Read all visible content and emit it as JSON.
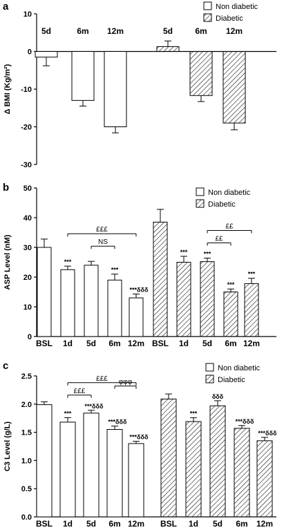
{
  "chart_data": [
    {
      "panel": "a",
      "type": "bar",
      "ylabel": "Δ BMI (Kg/m²)",
      "ylim": [
        -30,
        10
      ],
      "yticks": [
        10,
        0,
        -10,
        -20,
        -30
      ],
      "legend": [
        "Non diabetic",
        "Diabetic"
      ],
      "legend_placement": "top-right",
      "category_labels_position": "top",
      "series": [
        {
          "name": "Non diabetic",
          "pattern": "open",
          "categories": [
            "5d",
            "6m",
            "12m"
          ],
          "values": [
            -1.5,
            -13,
            -20
          ],
          "errors": [
            2.3,
            1.5,
            1.6
          ]
        },
        {
          "name": "Diabetic",
          "pattern": "hatched",
          "categories": [
            "5d",
            "6m",
            "12m"
          ],
          "values": [
            1.3,
            -11.7,
            -19
          ],
          "errors": [
            1.5,
            1.6,
            1.8
          ]
        }
      ]
    },
    {
      "panel": "b",
      "type": "bar",
      "ylabel": "ASP Level (nM)",
      "ylim": [
        0,
        50
      ],
      "yticks": [
        50,
        40,
        30,
        20,
        10,
        0
      ],
      "legend": [
        "Non diabetic",
        "Diabetic"
      ],
      "legend_placement": "top-right",
      "series": [
        {
          "name": "Non diabetic",
          "pattern": "open",
          "categories": [
            "BSL",
            "1d",
            "5d",
            "6m",
            "12m"
          ],
          "values": [
            30,
            22.5,
            24,
            19,
            13
          ],
          "errors": [
            2.8,
            1.2,
            1.3,
            2.0,
            1.3
          ],
          "annotations": [
            "",
            "***",
            "",
            "***",
            "***δδδ"
          ]
        },
        {
          "name": "Diabetic",
          "pattern": "hatched",
          "categories": [
            "BSL",
            "1d",
            "5d",
            "6m",
            "12m"
          ],
          "values": [
            38.5,
            25,
            25.2,
            15,
            17.8
          ],
          "errors": [
            4.3,
            2.0,
            1.2,
            1.0,
            1.8
          ],
          "annotations": [
            "",
            "***",
            "***",
            "***",
            "***"
          ]
        }
      ],
      "brackets": [
        {
          "series": 0,
          "from": 2,
          "to": 3,
          "label": "NS"
        },
        {
          "series": 0,
          "from": 1,
          "to": 4,
          "label": "£££"
        },
        {
          "series": 1,
          "from": 2,
          "to": 3,
          "label": "££"
        },
        {
          "series": 1,
          "from": 2,
          "to": 4,
          "label": "££"
        }
      ]
    },
    {
      "panel": "c",
      "type": "bar",
      "ylabel": "C3  Level (g/L)",
      "ylim": [
        0,
        2.5
      ],
      "yticks": [
        "2.5",
        "2.0",
        "1.5",
        "1.0",
        "0.5",
        "0.0"
      ],
      "legend": [
        "Non diabetic",
        "Diabetic"
      ],
      "legend_placement": "top-right",
      "series": [
        {
          "name": "Non diabetic",
          "pattern": "open",
          "categories": [
            "BSL",
            "1d",
            "5d",
            "6m",
            "12m"
          ],
          "values": [
            1.99,
            1.68,
            1.84,
            1.55,
            1.3
          ],
          "errors": [
            0.05,
            0.08,
            0.05,
            0.06,
            0.04
          ],
          "annotations": [
            "",
            "***",
            "***δδδ",
            "***δδδ",
            "***δδδ"
          ]
        },
        {
          "name": "Diabetic",
          "pattern": "hatched",
          "categories": [
            "BSL",
            "1d",
            "5d",
            "6m",
            "12m"
          ],
          "values": [
            2.09,
            1.69,
            1.97,
            1.57,
            1.35
          ],
          "errors": [
            0.09,
            0.07,
            0.09,
            0.05,
            0.06
          ],
          "annotations": [
            "",
            "***",
            "δδδ",
            "***δδδ",
            "***δδδ"
          ]
        }
      ],
      "brackets": [
        {
          "series": 0,
          "from": 1,
          "to": 2,
          "label": "£££"
        },
        {
          "series": 0,
          "from": 1,
          "to": 4,
          "label": "£££"
        },
        {
          "series": 0,
          "from": 3,
          "to": 4,
          "label": "φφφ"
        }
      ]
    }
  ]
}
